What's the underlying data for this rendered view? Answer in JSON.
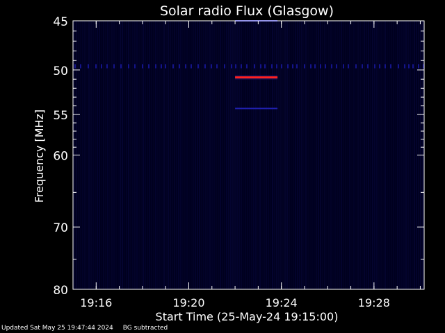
{
  "chart_data": {
    "type": "heatmap",
    "title": "Solar radio Flux (Glasgow)",
    "xlabel": "Start Time (25-May-24 19:15:00)",
    "ylabel": "Frequency [MHz]",
    "x_unit": "time",
    "y_scale": "log",
    "ylim": [
      45,
      80
    ],
    "xlim": [
      "19:15:00",
      "19:30:10"
    ],
    "x_ticks": [
      "19:16",
      "19:20",
      "19:24",
      "19:28"
    ],
    "y_ticks": [
      45,
      50,
      55,
      60,
      70,
      80
    ],
    "background_color": "#00001e",
    "features": [
      {
        "kind": "strong-band",
        "freq_mhz": 50.8,
        "t_start": "19:22:00",
        "t_end": "19:23:50",
        "color": "#ff2020"
      },
      {
        "kind": "band",
        "freq_mhz": 45.0,
        "t_start": "19:22:00",
        "t_end": "19:23:50",
        "color": "#2a2ad0"
      },
      {
        "kind": "band",
        "freq_mhz": 54.3,
        "t_start": "19:22:00",
        "t_end": "19:23:50",
        "color": "#2020b0"
      },
      {
        "kind": "band",
        "freq_mhz": 49.6,
        "t_start": "19:15:00",
        "t_end": "19:30:10",
        "color": "#14148a"
      }
    ]
  },
  "footer": {
    "updated": "Updated Sat May 25 19:47:44 2024",
    "mode": "BG subtracted"
  },
  "colors": {
    "axis": "#ffffff",
    "background": "#000000"
  }
}
